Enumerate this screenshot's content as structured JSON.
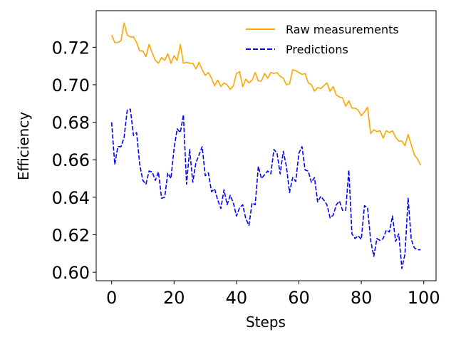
{
  "chart_data": {
    "type": "line",
    "xlabel": "Steps",
    "ylabel": "Efficiency",
    "xlim": [
      -4.95,
      103.95
    ],
    "ylim": [
      0.5955,
      0.7395
    ],
    "xticks": [
      0,
      20,
      40,
      60,
      80,
      100
    ],
    "xtick_labels": [
      "0",
      "20",
      "40",
      "60",
      "80",
      "100"
    ],
    "yticks": [
      0.6,
      0.62,
      0.64,
      0.66,
      0.68,
      0.7,
      0.72
    ],
    "ytick_labels": [
      "0.60",
      "0.62",
      "0.64",
      "0.66",
      "0.68",
      "0.70",
      "0.72"
    ],
    "grid": false,
    "legend_position": "top-right",
    "series": [
      {
        "name": "Raw measurements",
        "color": "#ffa500",
        "dash": "solid",
        "x": [
          0,
          1,
          2,
          3,
          4,
          5,
          6,
          7,
          8,
          9,
          10,
          11,
          12,
          13,
          14,
          15,
          16,
          17,
          18,
          19,
          20,
          21,
          22,
          23,
          24,
          25,
          26,
          27,
          28,
          29,
          30,
          31,
          32,
          33,
          34,
          35,
          36,
          37,
          38,
          39,
          40,
          41,
          42,
          43,
          44,
          45,
          46,
          47,
          48,
          49,
          50,
          51,
          52,
          53,
          54,
          55,
          56,
          57,
          58,
          59,
          60,
          61,
          62,
          63,
          64,
          65,
          66,
          67,
          68,
          69,
          70,
          71,
          72,
          73,
          74,
          75,
          76,
          77,
          78,
          79,
          80,
          81,
          82,
          83,
          84,
          85,
          86,
          87,
          88,
          89,
          90,
          91,
          92,
          93,
          94,
          95,
          96,
          97,
          98,
          99
        ],
        "values": [
          0.7265,
          0.7225,
          0.7225,
          0.7235,
          0.733,
          0.7265,
          0.7255,
          0.7255,
          0.7225,
          0.718,
          0.718,
          0.715,
          0.7215,
          0.717,
          0.713,
          0.7115,
          0.7145,
          0.713,
          0.7165,
          0.7115,
          0.7155,
          0.713,
          0.7215,
          0.7115,
          0.712,
          0.7115,
          0.7115,
          0.7085,
          0.712,
          0.708,
          0.705,
          0.7065,
          0.7035,
          0.6995,
          0.7025,
          0.699,
          0.701,
          0.7,
          0.6975,
          0.6995,
          0.706,
          0.707,
          0.699,
          0.703,
          0.701,
          0.7025,
          0.7065,
          0.702,
          0.702,
          0.706,
          0.7035,
          0.7065,
          0.706,
          0.7065,
          0.7045,
          0.7035,
          0.7,
          0.7005,
          0.708,
          0.7075,
          0.7065,
          0.7055,
          0.706,
          0.701,
          0.7,
          0.6965,
          0.6985,
          0.698,
          0.6995,
          0.701,
          0.6965,
          0.699,
          0.6945,
          0.6935,
          0.693,
          0.6885,
          0.6915,
          0.6875,
          0.6875,
          0.6865,
          0.6835,
          0.6855,
          0.688,
          0.674,
          0.676,
          0.675,
          0.6755,
          0.6715,
          0.6755,
          0.6745,
          0.6755,
          0.672,
          0.67,
          0.67,
          0.6675,
          0.6735,
          0.668,
          0.6625,
          0.6605,
          0.657
        ]
      },
      {
        "name": "Predictions",
        "color": "#0000ff",
        "dash": "dashed",
        "x": [
          0,
          1,
          2,
          3,
          4,
          5,
          6,
          7,
          8,
          9,
          10,
          11,
          12,
          13,
          14,
          15,
          16,
          17,
          18,
          19,
          20,
          21,
          22,
          23,
          24,
          25,
          26,
          27,
          28,
          29,
          30,
          31,
          32,
          33,
          34,
          35,
          36,
          37,
          38,
          39,
          40,
          41,
          42,
          43,
          44,
          45,
          46,
          47,
          48,
          49,
          50,
          51,
          52,
          53,
          54,
          55,
          56,
          57,
          58,
          59,
          60,
          61,
          62,
          63,
          64,
          65,
          66,
          67,
          68,
          69,
          70,
          71,
          72,
          73,
          74,
          75,
          76,
          77,
          78,
          79,
          80,
          81,
          82,
          83,
          84,
          85,
          86,
          87,
          88,
          89,
          90,
          91,
          92,
          93,
          94,
          95,
          96,
          97,
          98,
          99
        ],
        "values": [
          0.68,
          0.6575,
          0.667,
          0.667,
          0.672,
          0.6865,
          0.687,
          0.673,
          0.6745,
          0.6575,
          0.649,
          0.647,
          0.654,
          0.6535,
          0.649,
          0.6535,
          0.6395,
          0.64,
          0.653,
          0.65,
          0.666,
          0.6765,
          0.6745,
          0.684,
          0.647,
          0.6655,
          0.648,
          0.6585,
          0.6625,
          0.667,
          0.6515,
          0.653,
          0.643,
          0.6445,
          0.6385,
          0.634,
          0.644,
          0.636,
          0.641,
          0.637,
          0.63,
          0.6345,
          0.636,
          0.6285,
          0.625,
          0.637,
          0.636,
          0.6565,
          0.65,
          0.652,
          0.654,
          0.6525,
          0.6655,
          0.6635,
          0.6525,
          0.6645,
          0.6565,
          0.6425,
          0.6505,
          0.6485,
          0.6635,
          0.667,
          0.6545,
          0.654,
          0.648,
          0.6505,
          0.6375,
          0.6405,
          0.6385,
          0.636,
          0.629,
          0.6305,
          0.636,
          0.638,
          0.633,
          0.633,
          0.6545,
          0.6205,
          0.618,
          0.6195,
          0.6175,
          0.6355,
          0.6345,
          0.617,
          0.6085,
          0.618,
          0.617,
          0.618,
          0.6225,
          0.6215,
          0.63,
          0.6165,
          0.6205,
          0.602,
          0.61,
          0.6395,
          0.6175,
          0.613,
          0.612,
          0.612
        ]
      }
    ]
  }
}
